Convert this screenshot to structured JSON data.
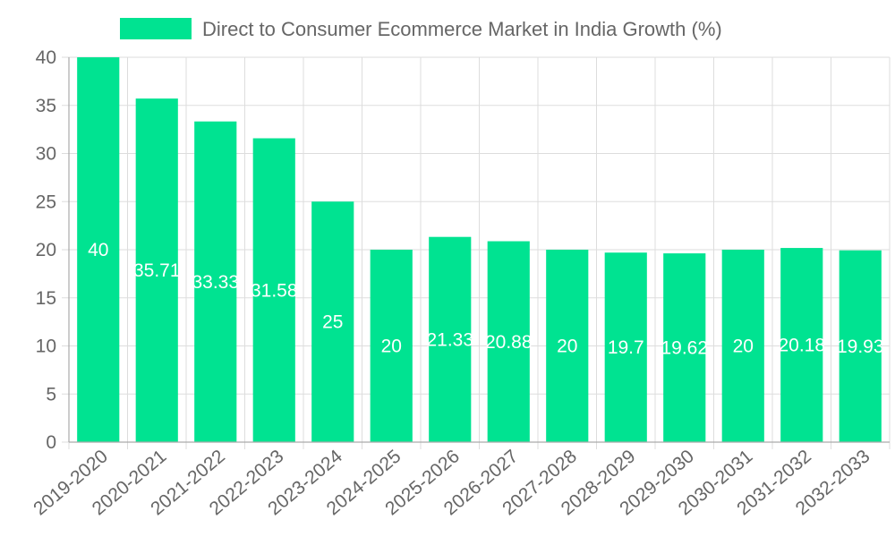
{
  "chart_data": {
    "type": "bar",
    "title": "",
    "xlabel": "",
    "ylabel": "",
    "legend": {
      "label": "Direct to Consumer Ecommerce Market in India Growth (%)",
      "position": "top",
      "color": "#00e391"
    },
    "categories": [
      "2019-2020",
      "2020-2021",
      "2021-2022",
      "2022-2023",
      "2023-2024",
      "2024-2025",
      "2025-2026",
      "2026-2027",
      "2027-2028",
      "2028-2029",
      "2029-2030",
      "2030-2031",
      "2031-2032",
      "2032-2033"
    ],
    "values": [
      40,
      35.71,
      33.33,
      31.58,
      25,
      20,
      21.33,
      20.88,
      20,
      19.7,
      19.62,
      20,
      20.18,
      19.93
    ],
    "value_labels": [
      "40",
      "35.71",
      "33.33",
      "31.58",
      "25",
      "20",
      "21.33",
      "20.88",
      "20",
      "19.7",
      "19.62",
      "20",
      "20.18",
      "19.93"
    ],
    "ylim": [
      0,
      40
    ],
    "yticks": [
      0,
      5,
      10,
      15,
      20,
      25,
      30,
      35,
      40
    ],
    "grid": true,
    "bar_color": "#00e391"
  }
}
